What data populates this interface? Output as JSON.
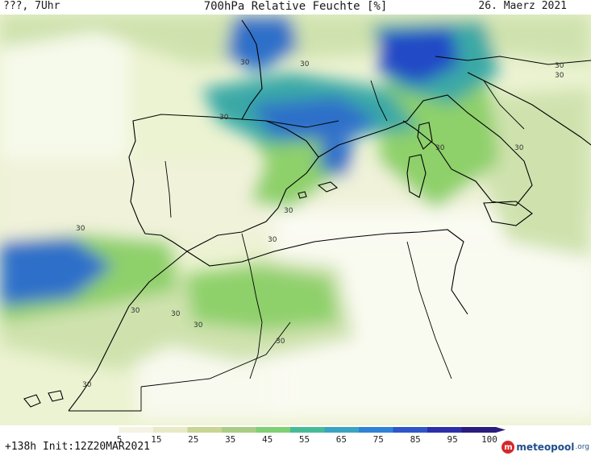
{
  "header": {
    "location": "???, 7Uhr",
    "title": "700hPa Relative Feuchte [%]",
    "date": "26. Maerz 2021"
  },
  "map": {
    "contour_label": "30",
    "sea_color": "#ecf3d2",
    "land_dry_color": "#fbfbf4",
    "moist_colors": {
      "low": "#cfe2ae",
      "mid": "#8ed06a",
      "teal": "#3aa9a6",
      "high": "#2d6fc9",
      "very_high": "#2448c6"
    },
    "coastline_color": "#000000"
  },
  "colorbar": {
    "ticks": [
      "5",
      "15",
      "25",
      "35",
      "45",
      "55",
      "65",
      "75",
      "85",
      "95",
      "100"
    ],
    "colors": [
      "#ffffff",
      "#f5f3e3",
      "#e8e9c7",
      "#c8d593",
      "#aacd86",
      "#7fcf73",
      "#46bb96",
      "#3aa4c1",
      "#2f82d5",
      "#2f55c7",
      "#2d2fa8",
      "#2a1d7c"
    ]
  },
  "footer": {
    "run_info": "+138h  Init:12Z20MAR2021",
    "brand_name": "meteopool",
    "brand_tld": ".org"
  }
}
